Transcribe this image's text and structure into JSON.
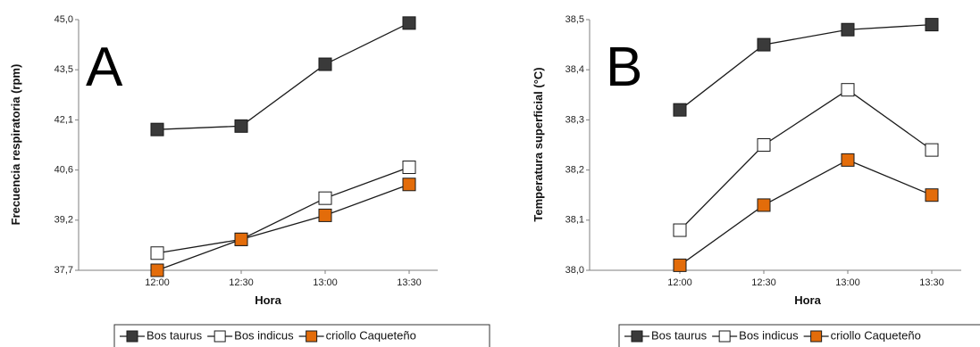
{
  "chart_data": [
    {
      "type": "line",
      "panel_label": "A",
      "xlabel": "Hora",
      "ylabel": "Frecuencia respiratoria (rpm)",
      "categories": [
        "12:00",
        "12:30",
        "13:00",
        "13:30"
      ],
      "yticks": [
        "37,7",
        "39,2",
        "40,6",
        "42,1",
        "43,5",
        "45,0"
      ],
      "ylim": [
        37.7,
        45.0
      ],
      "series": [
        {
          "name": "Bos taurus",
          "values": [
            41.8,
            41.9,
            43.7,
            44.9
          ],
          "color": "#3a3a3a"
        },
        {
          "name": "Bos indicus",
          "values": [
            38.2,
            38.6,
            39.8,
            40.7
          ],
          "color": "#ffffff"
        },
        {
          "name": "criollo Caqueteño",
          "values": [
            37.7,
            38.6,
            39.3,
            40.2
          ],
          "color": "#e36c0a"
        }
      ],
      "legend": "bottom"
    },
    {
      "type": "line",
      "panel_label": "B",
      "xlabel": "Hora",
      "ylabel": "Temperatura superficial (°C)",
      "categories": [
        "12:00",
        "12:30",
        "13:00",
        "13:30"
      ],
      "yticks": [
        "38,0",
        "38,1",
        "38,2",
        "38,3",
        "38,4",
        "38,5"
      ],
      "ylim": [
        38.0,
        38.5
      ],
      "series": [
        {
          "name": "Bos taurus",
          "values": [
            38.32,
            38.45,
            38.48,
            38.49
          ],
          "color": "#3a3a3a"
        },
        {
          "name": "Bos indicus",
          "values": [
            38.08,
            38.25,
            38.36,
            38.24
          ],
          "color": "#ffffff"
        },
        {
          "name": "criollo Caqueteño",
          "values": [
            38.01,
            38.13,
            38.22,
            38.15
          ],
          "color": "#e36c0a"
        }
      ],
      "legend": "bottom"
    }
  ]
}
